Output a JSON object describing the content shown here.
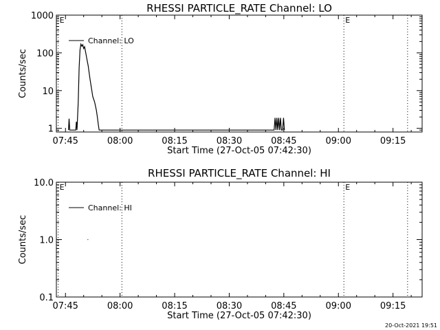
{
  "footer": {
    "timestamp": "20-Oct-2021 19:51"
  },
  "chart_data": [
    {
      "type": "line",
      "title": "RHESSI PARTICLE_RATE Channel: LO",
      "xlabel": "Start Time (27-Oct-05 07:42:30)",
      "ylabel": "Counts/sec",
      "yscale": "log",
      "xlim": [
        "07:42:30",
        "09:23:00"
      ],
      "ylim": [
        0.8,
        1000
      ],
      "x_ticks": [
        "07:45",
        "08:00",
        "08:15",
        "08:30",
        "08:45",
        "09:00",
        "09:15"
      ],
      "y_ticks": [
        "1",
        "10",
        "100",
        "1000"
      ],
      "legend": "top-left",
      "markers": [
        {
          "time": "07:43:00",
          "label": "E",
          "label_at_top": false
        },
        {
          "time": "08:00:30",
          "label": "",
          "label_at_top": false
        },
        {
          "time": "09:01:30",
          "label": "E",
          "label_at_top": true
        },
        {
          "time": "09:19:00",
          "label": "",
          "label_at_top": false
        }
      ],
      "series": [
        {
          "name": "Channel: LO",
          "color": "#000000",
          "points": [
            [
              "07:45:50",
              0.9
            ],
            [
              "07:46:00",
              1.8
            ],
            [
              "07:46:10",
              0.9
            ],
            [
              "07:47:50",
              0.9
            ],
            [
              "07:48:00",
              1.5
            ],
            [
              "07:48:10",
              0.9
            ],
            [
              "07:48:30",
              5
            ],
            [
              "07:48:45",
              40
            ],
            [
              "07:49:00",
              120
            ],
            [
              "07:49:15",
              170
            ],
            [
              "07:49:30",
              150
            ],
            [
              "07:49:45",
              165
            ],
            [
              "07:50:00",
              130
            ],
            [
              "07:50:15",
              145
            ],
            [
              "07:50:30",
              110
            ],
            [
              "07:50:45",
              80
            ],
            [
              "07:51:00",
              60
            ],
            [
              "07:51:15",
              45
            ],
            [
              "07:51:30",
              30
            ],
            [
              "07:51:45",
              20
            ],
            [
              "07:52:00",
              14
            ],
            [
              "07:52:15",
              10
            ],
            [
              "07:52:30",
              7
            ],
            [
              "07:53:00",
              5
            ],
            [
              "07:53:30",
              3
            ],
            [
              "07:53:45",
              2
            ],
            [
              "07:54:00",
              1.3
            ],
            [
              "07:54:15",
              0.9
            ],
            [
              "08:42:20",
              0.9
            ],
            [
              "08:42:35",
              1.9
            ],
            [
              "08:42:50",
              0.9
            ],
            [
              "08:43:05",
              1.9
            ],
            [
              "08:43:20",
              0.9
            ],
            [
              "08:43:35",
              1.9
            ],
            [
              "08:43:50",
              0.9
            ],
            [
              "08:44:05",
              1.9
            ],
            [
              "08:44:20",
              0.9
            ],
            [
              "08:44:40",
              0.9
            ],
            [
              "08:44:55",
              1.9
            ],
            [
              "08:45:10",
              0.9
            ]
          ]
        }
      ]
    },
    {
      "type": "line",
      "title": "RHESSI PARTICLE_RATE Channel: HI",
      "xlabel": "Start Time (27-Oct-05 07:42:30)",
      "ylabel": "Counts/sec",
      "yscale": "log",
      "xlim": [
        "07:42:30",
        "09:23:00"
      ],
      "ylim": [
        0.1,
        10
      ],
      "x_ticks": [
        "07:45",
        "08:00",
        "08:15",
        "08:30",
        "08:45",
        "09:00",
        "09:15"
      ],
      "y_ticks": [
        "0.1",
        "1.0",
        "10.0"
      ],
      "legend": "top-left",
      "markers": [
        {
          "time": "07:43:00",
          "label": "E",
          "label_at_top": true
        },
        {
          "time": "08:00:30",
          "label": "",
          "label_at_top": false
        },
        {
          "time": "09:01:30",
          "label": "E",
          "label_at_top": true
        },
        {
          "time": "09:19:00",
          "label": "",
          "label_at_top": false
        }
      ],
      "series": [
        {
          "name": "Channel: HI",
          "color": "#000000",
          "points": [
            [
              "07:51:05",
              1.0
            ],
            [
              "07:51:15",
              1.0
            ]
          ]
        }
      ]
    }
  ]
}
